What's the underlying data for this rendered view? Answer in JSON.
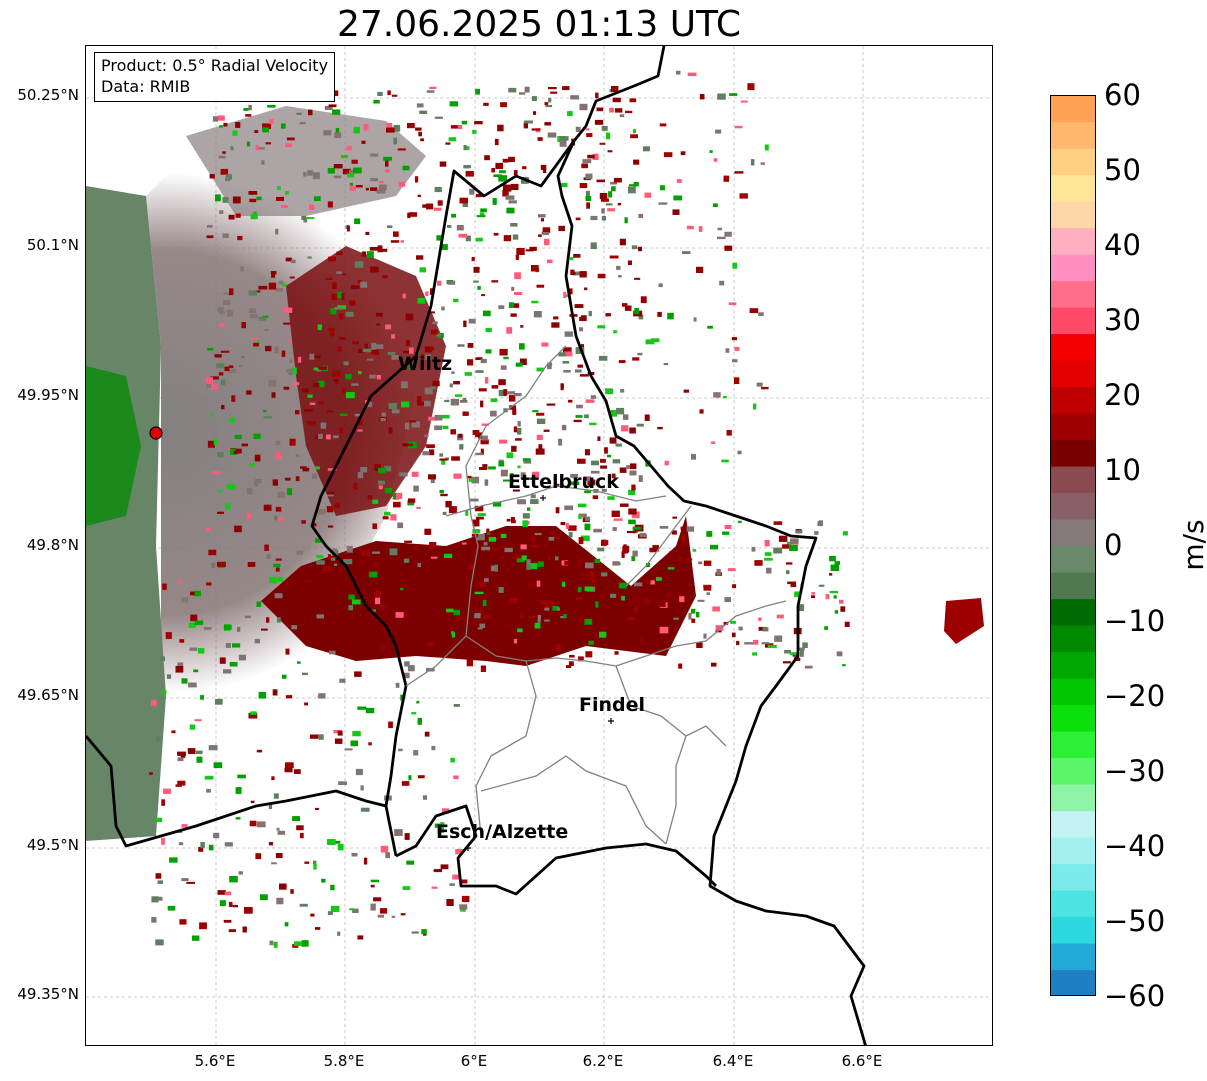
{
  "title": "27.06.2025 01:13 UTC",
  "info": {
    "product": "Product: 0.5° Radial Velocity",
    "data": "Data: RMIB"
  },
  "map": {
    "lat_labels": [
      "50.25°N",
      "50.1°N",
      "49.95°N",
      "49.8°N",
      "49.65°N",
      "49.5°N",
      "49.35°N"
    ],
    "lon_labels": [
      "5.6°E",
      "5.8°E",
      "6°E",
      "6.2°E",
      "6.4°E",
      "6.6°E"
    ],
    "cities": [
      {
        "name": "Wiltz"
      },
      {
        "name": "Ettelbruck"
      },
      {
        "name": "Findel"
      },
      {
        "name": "Esch/Alzette"
      }
    ],
    "radar_marker": "red-circle"
  },
  "colorbar": {
    "label": "m/s",
    "ticks": [
      "60",
      "50",
      "40",
      "30",
      "20",
      "10",
      "0",
      "−10",
      "−20",
      "−30",
      "−40",
      "−50",
      "−60"
    ],
    "range": [
      -60,
      60
    ],
    "colors": [
      "#1f7fc4",
      "#23a9d6",
      "#2cd9e0",
      "#4ee3e3",
      "#7aeaea",
      "#a3f0f0",
      "#c3f3f3",
      "#8ff3a8",
      "#5ef56e",
      "#2bf033",
      "#0ce00c",
      "#00c600",
      "#00a700",
      "#008a00",
      "#006b00",
      "#4f7a4f",
      "#6a886a",
      "#847a7a",
      "#8a6068",
      "#8a4a50",
      "#7a0000",
      "#9c0000",
      "#c00000",
      "#e20000",
      "#f50000",
      "#ff4a6a",
      "#ff6e8a",
      "#ff8fbf",
      "#ffb0c0",
      "#ffd6a8",
      "#ffe59a",
      "#ffcf80",
      "#ffb86e",
      "#ffa258"
    ]
  },
  "colors": {
    "approaching": "#008a00",
    "receding": "#8b0000",
    "near_zero": "#7f7474",
    "border": "#000000",
    "canton_lines": "#808080"
  }
}
